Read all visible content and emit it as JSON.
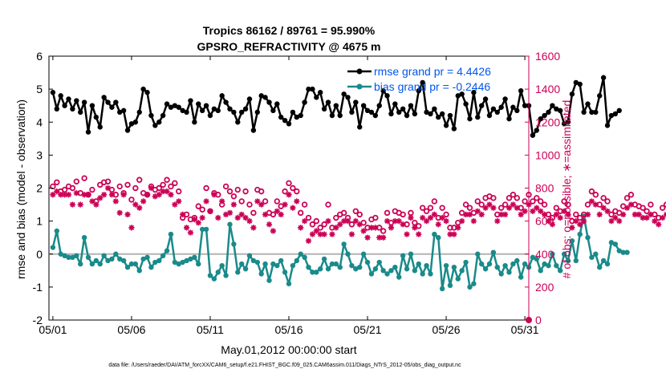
{
  "chart_data": {
    "type": "line",
    "title": "Tropics 86162 / 89761 = 95.990%",
    "subtitle": "GPSRO_REFRACTIVITY @ 4675 m",
    "xlabel": "May.01,2012 00:00:00 start",
    "ylabel_left": "rmse and bias (model - observation)",
    "ylabel_right": "# of obs: o=possible; ∗=assimilated",
    "footnote": "data file: /Users/raeder/DAI/ATM_forcXX/CAM6_setup/f.e21.FHIST_BGC.f09_025.CAM6assim.011/Diags_NTrS_2012-05/obs_diag_output.nc",
    "xlim": [
      0.75,
      31.25
    ],
    "x_ticks": [
      1,
      6,
      11,
      16,
      21,
      26,
      31
    ],
    "x_tick_labels": [
      "05/01",
      "05/06",
      "05/11",
      "05/16",
      "05/21",
      "05/26",
      "05/31"
    ],
    "ylim_left": [
      -2,
      6
    ],
    "y_ticks_left": [
      -2,
      -1,
      0,
      1,
      2,
      3,
      4,
      5,
      6
    ],
    "ylim_right": [
      0,
      1600
    ],
    "y_ticks_right": [
      0,
      200,
      400,
      600,
      800,
      1000,
      1200,
      1400,
      1600
    ],
    "grid": false,
    "legend_location": "top-right",
    "legend": [
      "rmse grand pr = 4.4426",
      "bias grand pr = -0.2446"
    ],
    "colors": {
      "rmse": "#000000",
      "bias": "#1a8a8a",
      "obs": "#cc0055",
      "zero_line": "#b3b3b3",
      "legend_text": "#0055ee"
    },
    "time_step_days": 0.25,
    "series": [
      {
        "name": "rmse grand pr = 4.4426",
        "axis": "left",
        "marker": "dot",
        "values": [
          4.9,
          4.4,
          4.8,
          4.5,
          4.7,
          4.4,
          4.65,
          4.3,
          4.6,
          3.7,
          4.5,
          4.15,
          3.85,
          4.75,
          4.6,
          4.45,
          4.6,
          4.3,
          4.35,
          3.75,
          3.95,
          4.0,
          4.3,
          5.0,
          4.9,
          4.2,
          3.9,
          4.0,
          4.2,
          4.55,
          4.45,
          4.5,
          4.45,
          4.35,
          4.3,
          4.65,
          4.0,
          4.55,
          4.35,
          4.5,
          4.2,
          4.4,
          4.35,
          4.8,
          4.6,
          4.4,
          4.3,
          4.0,
          4.3,
          4.4,
          4.7,
          3.75,
          4.3,
          4.8,
          4.75,
          4.6,
          4.35,
          4.55,
          4.15,
          4.05,
          3.95,
          4.3,
          4.15,
          4.2,
          4.6,
          5.0,
          5.0,
          4.75,
          4.9,
          4.4,
          4.6,
          4.2,
          4.5,
          4.2,
          4.85,
          4.75,
          4.3,
          4.6,
          3.85,
          4.5,
          4.35,
          4.3,
          4.2,
          4.5,
          4.95,
          4.8,
          4.25,
          4.55,
          4.3,
          4.4,
          4.2,
          4.5,
          4.25,
          4.95,
          5.2,
          4.3,
          4.25,
          4.4,
          4.15,
          4.25,
          3.9,
          4.2,
          3.8,
          4.8,
          4.85,
          4.55,
          4.1,
          4.9,
          4.15,
          4.5,
          4.7,
          4.2,
          4.4,
          4.3,
          4.45,
          4.7,
          4.1,
          4.45,
          4.35,
          4.95,
          4.5,
          4.5,
          3.6,
          3.75,
          4.1,
          4.2,
          4.3,
          4.5,
          4.4,
          4.35,
          3.95,
          4.0,
          4.85,
          5.2,
          5.15,
          4.3,
          4.55,
          4.3,
          4.3,
          4.8,
          5.35,
          3.9,
          4.2,
          4.25,
          4.35
        ]
      },
      {
        "name": "bias grand pr = -0.2446",
        "axis": "left",
        "marker": "dot",
        "values": [
          0.2,
          0.7,
          0.0,
          -0.05,
          -0.1,
          -0.1,
          -0.05,
          -0.3,
          0.5,
          -0.1,
          -0.3,
          -0.2,
          -0.3,
          -0.05,
          -0.2,
          -0.15,
          0.0,
          -0.15,
          -0.2,
          -0.4,
          -0.3,
          -0.3,
          -0.5,
          -0.15,
          -0.1,
          -0.4,
          -0.25,
          -0.2,
          -0.05,
          0.1,
          0.6,
          -0.25,
          -0.3,
          -0.25,
          -0.2,
          -0.15,
          -0.1,
          -0.3,
          0.75,
          0.75,
          -0.65,
          -0.75,
          -0.55,
          -0.35,
          -0.65,
          0.9,
          0.3,
          -0.55,
          -0.3,
          -0.45,
          -0.05,
          -0.2,
          -0.25,
          -0.6,
          -0.3,
          -0.8,
          -0.3,
          -0.35,
          -0.2,
          -0.55,
          -0.9,
          -0.35,
          -0.2,
          0.0,
          -0.1,
          -0.4,
          -0.55,
          -0.55,
          -0.45,
          -0.15,
          -0.45,
          -0.3,
          -0.3,
          -0.4,
          0.3,
          0.0,
          -0.35,
          -0.45,
          -0.4,
          0.0,
          -0.25,
          -0.6,
          -0.45,
          -0.25,
          -0.5,
          -0.6,
          -0.5,
          -0.4,
          -0.7,
          -0.05,
          -0.45,
          0.0,
          -0.5,
          -0.3,
          -0.6,
          -0.35,
          -0.6,
          0.6,
          0.5,
          -1.05,
          -0.35,
          -0.95,
          -0.4,
          -0.75,
          -0.5,
          -0.25,
          -1.0,
          -0.9,
          0.0,
          -0.3,
          -0.45,
          -0.3,
          0.05,
          -0.4,
          -0.6,
          -0.35,
          -0.55,
          -0.3,
          -0.2,
          -0.7,
          -0.3,
          -0.4,
          -0.1,
          -0.15,
          -0.5,
          -0.3,
          -0.35,
          0.0,
          -0.35,
          -0.5,
          0.0,
          -0.2,
          0.4,
          -0.2,
          0.6,
          1.15,
          0.5,
          -0.1,
          0.0,
          -0.4,
          -0.2,
          -0.3,
          0.35,
          0.3,
          0.1,
          0.05,
          0.05
        ]
      },
      {
        "name": "",
        "axis": "right",
        "marker": "o",
        "values": [
          810,
          835,
          780,
          790,
          810,
          800,
          840,
          770,
          860,
          760,
          790,
          720,
          820,
          835,
          840,
          790,
          760,
          810,
          770,
          820,
          730,
          800,
          850,
          770,
          760,
          810,
          790,
          800,
          820,
          850,
          810,
          830,
          780,
          620,
          640,
          610,
          620,
          690,
          670,
          800,
          660,
          770,
          760,
          700,
          810,
          780,
          750,
          790,
          720,
          780,
          700,
          650,
          790,
          780,
          720,
          650,
          640,
          720,
          690,
          780,
          830,
          800,
          780,
          650,
          700,
          620,
          580,
          600,
          560,
          580,
          700,
          560,
          620,
          640,
          650,
          620,
          580,
          660,
          640,
          590,
          560,
          610,
          620,
          560,
          540,
          650,
          590,
          660,
          650,
          640,
          580,
          650,
          590,
          570,
          680,
          660,
          680,
          720,
          620,
          680,
          640,
          560,
          560,
          590,
          650,
          700,
          680,
          650,
          720,
          700,
          740,
          750,
          740,
          640,
          680,
          700,
          740,
          760,
          740,
          680,
          720,
          760,
          720,
          740,
          720,
          700,
          640,
          620,
          680,
          660,
          720,
          700,
          600,
          640,
          620,
          640,
          700,
          780,
          760,
          700,
          740,
          720,
          640,
          660,
          650,
          690,
          740,
          760,
          700,
          690,
          680,
          660,
          700,
          640,
          620,
          680,
          700,
          720,
          700,
          790,
          800,
          680
        ]
      },
      {
        "name": "",
        "axis": "right",
        "marker": "asterisk",
        "values": [
          760,
          780,
          760,
          760,
          760,
          700,
          770,
          700,
          760,
          760,
          720,
          700,
          740,
          760,
          800,
          760,
          720,
          650,
          760,
          640,
          560,
          700,
          680,
          720,
          760,
          800,
          750,
          760,
          780,
          780,
          760,
          700,
          720,
          640,
          560,
          530,
          610,
          590,
          620,
          720,
          660,
          760,
          620,
          720,
          640,
          650,
          700,
          620,
          640,
          620,
          600,
          560,
          720,
          700,
          640,
          580,
          540,
          660,
          640,
          700,
          760,
          680,
          720,
          560,
          600,
          480,
          520,
          540,
          520,
          520,
          600,
          520,
          560,
          580,
          600,
          600,
          520,
          600,
          580,
          540,
          500,
          560,
          560,
          500,
          500,
          600,
          560,
          600,
          600,
          580,
          520,
          620,
          560,
          520,
          620,
          600,
          620,
          640,
          580,
          620,
          600,
          520,
          520,
          560,
          600,
          640,
          640,
          600,
          660,
          640,
          680,
          700,
          680,
          600,
          640,
          640,
          680,
          700,
          680,
          640,
          660,
          700,
          660,
          680,
          660,
          640,
          600,
          580,
          640,
          620,
          660,
          640,
          560,
          600,
          580,
          600,
          640,
          720,
          700,
          640,
          680,
          660,
          600,
          620,
          600,
          640,
          680,
          700,
          640,
          640,
          620,
          620,
          640,
          600,
          580,
          620,
          640,
          660,
          640,
          720,
          740,
          620
        ]
      }
    ]
  }
}
